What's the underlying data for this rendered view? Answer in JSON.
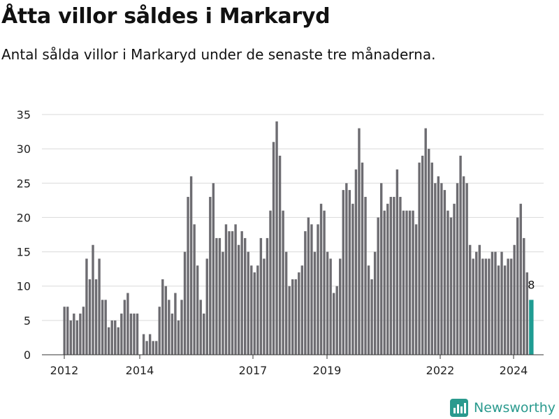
{
  "header": {
    "title": "Åtta villor såldes i Markaryd",
    "subtitle": "Antal sålda villor i Markaryd under de senaste tre månaderna."
  },
  "branding": {
    "name": "Newsworthy",
    "icon": "bar-chart-logo-icon"
  },
  "colors": {
    "bar": "#6d6c71",
    "highlight": "#1f9c92",
    "grid": "#d9d9d9",
    "brand": "#2a9a8e"
  },
  "chart_data": {
    "type": "bar",
    "title": "Åtta villor såldes i Markaryd",
    "subtitle": "Antal sålda villor i Markaryd under de senaste tre månaderna.",
    "xlabel": "",
    "ylabel": "",
    "ylim": [
      0,
      35
    ],
    "yticks": [
      0,
      5,
      10,
      15,
      20,
      25,
      30,
      35
    ],
    "xticks": [
      "2012",
      "2014",
      "2017",
      "2019",
      "2022",
      "2024"
    ],
    "grid": true,
    "highlight_last": true,
    "last_value_label": "8",
    "values": [
      7,
      7,
      5,
      6,
      5,
      6,
      7,
      14,
      11,
      16,
      11,
      14,
      8,
      8,
      4,
      5,
      5,
      4,
      6,
      8,
      9,
      6,
      6,
      6,
      0,
      3,
      2,
      3,
      2,
      2,
      7,
      11,
      10,
      8,
      6,
      9,
      5,
      8,
      15,
      23,
      26,
      19,
      13,
      8,
      6,
      14,
      23,
      25,
      17,
      17,
      15,
      19,
      18,
      18,
      19,
      16,
      18,
      17,
      15,
      13,
      12,
      13,
      17,
      14,
      17,
      21,
      31,
      34,
      29,
      21,
      15,
      10,
      11,
      11,
      12,
      13,
      18,
      20,
      19,
      15,
      19,
      22,
      21,
      15,
      14,
      9,
      10,
      14,
      24,
      25,
      24,
      22,
      27,
      33,
      28,
      23,
      13,
      11,
      15,
      20,
      25,
      21,
      22,
      23,
      23,
      27,
      23,
      21,
      21,
      21,
      21,
      19,
      28,
      29,
      33,
      30,
      28,
      25,
      26,
      25,
      24,
      21,
      20,
      22,
      25,
      29,
      26,
      25,
      16,
      14,
      15,
      16,
      14,
      14,
      14,
      15,
      15,
      13,
      15,
      13,
      14,
      14,
      16,
      20,
      22,
      17,
      12,
      8
    ]
  }
}
